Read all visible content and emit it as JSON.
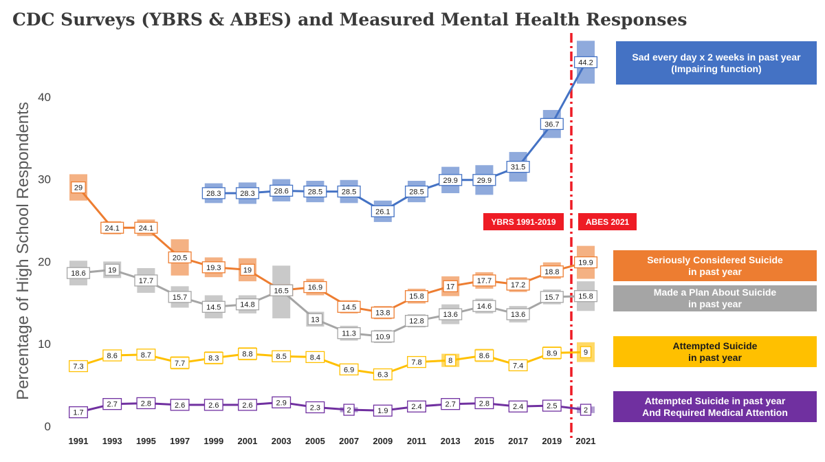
{
  "chart_data": {
    "type": "line",
    "title": "CDC Surveys (YBRS & ABES) and Measured Mental Health Responses",
    "ylabel": "Percentage of High School Respondents",
    "xlabel": "",
    "ylim": [
      0,
      45
    ],
    "yticks": [
      "0",
      "10",
      "20",
      "30",
      "40"
    ],
    "ytick_values": [
      0,
      10,
      20,
      30,
      40
    ],
    "categories": [
      "1991",
      "1993",
      "1995",
      "1997",
      "1999",
      "2001",
      "2003",
      "2005",
      "2007",
      "2009",
      "2011",
      "2013",
      "2015",
      "2017",
      "2019",
      "2021"
    ],
    "series": [
      {
        "name": "Sad every day x 2 weeks in past year (Impairing function)",
        "color": "#4472c4",
        "ci_color": "#8faadc",
        "values": [
          null,
          null,
          null,
          null,
          28.3,
          28.3,
          28.6,
          28.5,
          28.5,
          26.1,
          28.5,
          29.9,
          29.9,
          31.5,
          36.7,
          44.2
        ],
        "labels": [
          "",
          "",
          "",
          "",
          "28.3",
          "28.3",
          "28.6",
          "28.5",
          "28.5",
          "26.1",
          "28.5",
          "29.9",
          "29.9",
          "31.5",
          "36.7",
          "44.2"
        ],
        "ci": [
          null,
          null,
          null,
          null,
          [
            27.1,
            29.5
          ],
          [
            27.0,
            29.6
          ],
          [
            27.3,
            30.0
          ],
          [
            27.2,
            29.8
          ],
          [
            27.1,
            29.9
          ],
          [
            24.8,
            27.4
          ],
          [
            27.2,
            29.8
          ],
          [
            28.3,
            31.5
          ],
          [
            28.1,
            31.7
          ],
          [
            29.7,
            33.3
          ],
          [
            35.0,
            38.4
          ],
          [
            41.6,
            46.8
          ]
        ]
      },
      {
        "name": "Seriously Considered Suicide in past year",
        "color": "#ed7d31",
        "ci_color": "#f4b183",
        "values": [
          29,
          24.1,
          24.1,
          20.5,
          19.3,
          19,
          16.5,
          16.9,
          14.5,
          13.8,
          15.8,
          17,
          17.7,
          17.2,
          18.8,
          19.9
        ],
        "labels": [
          "29",
          "24.1",
          "24.1",
          "20.5",
          "19.3",
          "19",
          "16.5",
          "16.9",
          "14.5",
          "13.8",
          "15.8",
          "17",
          "17.7",
          "17.2",
          "18.8",
          "19.9"
        ],
        "ci": [
          [
            27.4,
            30.6
          ],
          [
            23.3,
            24.9
          ],
          [
            23.1,
            25.1
          ],
          [
            18.3,
            22.7
          ],
          [
            18.1,
            20.5
          ],
          [
            17.6,
            20.4
          ],
          [
            null,
            null
          ],
          [
            15.9,
            17.9
          ],
          [
            13.7,
            15.3
          ],
          [
            13.0,
            14.6
          ],
          [
            14.9,
            16.7
          ],
          [
            15.8,
            18.2
          ],
          [
            16.7,
            18.7
          ],
          [
            16.3,
            18.1
          ],
          [
            17.9,
            19.9
          ],
          [
            17.9,
            21.9
          ]
        ]
      },
      {
        "name": "Made a Plan About Suicide in past year",
        "color": "#a5a5a5",
        "ci_color": "#c9c9c9",
        "values": [
          18.6,
          19,
          17.7,
          15.7,
          14.5,
          14.8,
          16.5,
          13,
          11.3,
          10.9,
          12.8,
          13.6,
          14.6,
          13.6,
          15.7,
          15.8
        ],
        "labels": [
          "18.6",
          "19",
          "17.7",
          "15.7",
          "14.5",
          "14.8",
          "16.5",
          "13",
          "11.3",
          "10.9",
          "12.8",
          "13.6",
          "14.6",
          "13.6",
          "15.7",
          "15.8"
        ],
        "ci": [
          [
            17.1,
            20.1
          ],
          [
            18.0,
            20.0
          ],
          [
            16.2,
            19.2
          ],
          [
            14.4,
            17.0
          ],
          [
            13.1,
            15.9
          ],
          [
            13.7,
            15.9
          ],
          [
            13.1,
            19.5
          ],
          [
            12.1,
            13.9
          ],
          [
            10.4,
            12.2
          ],
          [
            10.1,
            11.7
          ],
          [
            12.0,
            13.6
          ],
          [
            12.4,
            14.8
          ],
          [
            13.7,
            15.5
          ],
          [
            12.6,
            14.6
          ],
          [
            14.8,
            16.6
          ],
          [
            14.0,
            17.6
          ]
        ]
      },
      {
        "name": "Attempted Suicide in past year",
        "color": "#ffc000",
        "ci_color": "#ffd966",
        "values": [
          7.3,
          8.6,
          8.7,
          7.7,
          8.3,
          8.8,
          8.5,
          8.4,
          6.9,
          6.3,
          7.8,
          8,
          8.6,
          7.4,
          8.9,
          9
        ],
        "labels": [
          "7.3",
          "8.6",
          "8.7",
          "7.7",
          "8.3",
          "8.8",
          "8.5",
          "8.4",
          "6.9",
          "6.3",
          "7.8",
          "8",
          "8.6",
          "7.4",
          "8.9",
          "9"
        ],
        "ci": [
          [
            6.6,
            8.0
          ],
          [
            8.0,
            9.2
          ],
          [
            8.0,
            9.4
          ],
          [
            6.9,
            8.5
          ],
          [
            7.5,
            9.1
          ],
          [
            8.0,
            9.6
          ],
          [
            7.8,
            9.2
          ],
          [
            7.7,
            9.1
          ],
          [
            6.2,
            7.6
          ],
          [
            5.7,
            6.9
          ],
          [
            7.1,
            8.5
          ],
          [
            7.2,
            8.8
          ],
          [
            7.8,
            9.4
          ],
          [
            6.7,
            8.1
          ],
          [
            8.1,
            9.7
          ],
          [
            7.8,
            10.2
          ]
        ]
      },
      {
        "name": "Attempted Suicide in past year And Required Medical Attention",
        "color": "#7030a0",
        "ci_color": "#b4a0d2",
        "values": [
          1.7,
          2.7,
          2.8,
          2.6,
          2.6,
          2.6,
          2.9,
          2.3,
          2,
          1.9,
          2.4,
          2.7,
          2.8,
          2.4,
          2.5,
          2
        ],
        "labels": [
          "1.7",
          "2.7",
          "2.8",
          "2.6",
          "2.6",
          "2.6",
          "2.9",
          "2.3",
          "2",
          "1.9",
          "2.4",
          "2.7",
          "2.8",
          "2.4",
          "2.5",
          "2"
        ],
        "ci": [
          [
            1.4,
            2.0
          ],
          [
            2.4,
            3.0
          ],
          [
            2.5,
            3.1
          ],
          [
            2.2,
            3.0
          ],
          [
            2.2,
            3.0
          ],
          [
            2.3,
            2.9
          ],
          [
            2.5,
            3.3
          ],
          [
            2.0,
            2.6
          ],
          [
            1.7,
            2.3
          ],
          [
            1.6,
            2.2
          ],
          [
            2.1,
            2.7
          ],
          [
            2.3,
            3.1
          ],
          [
            2.5,
            3.1
          ],
          [
            2.1,
            2.7
          ],
          [
            2.2,
            2.8
          ],
          [
            1.6,
            2.4
          ]
        ]
      }
    ],
    "legend": [
      {
        "lines": [
          "Sad every day x 2 weeks in past year",
          "(Impairing function)"
        ],
        "bg": "#4472c4",
        "fg": "#ffffff"
      },
      {
        "lines": [
          "Seriously Considered Suicide",
          "in past year"
        ],
        "bg": "#ed7d31",
        "fg": "#ffffff"
      },
      {
        "lines": [
          "Made a Plan About Suicide",
          "in past year"
        ],
        "bg": "#a5a5a5",
        "fg": "#ffffff"
      },
      {
        "lines": [
          "Attempted Suicide",
          "in past year"
        ],
        "bg": "#ffc000",
        "fg": "#1a1a1a"
      },
      {
        "lines": [
          "Attempted Suicide in past year",
          "And Required Medical Attention"
        ],
        "bg": "#7030a0",
        "fg": "#ffffff"
      }
    ],
    "survey_labels": {
      "left": "YBRS 1991-2019",
      "right": "ABES 2021"
    },
    "divider_color": "#ee1c25"
  }
}
